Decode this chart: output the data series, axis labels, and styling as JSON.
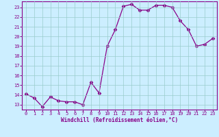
{
  "xlabel": "Windchill (Refroidissement éolien,°C)",
  "x_values": [
    0,
    1,
    2,
    3,
    4,
    5,
    6,
    7,
    8,
    9,
    10,
    11,
    12,
    13,
    14,
    15,
    16,
    17,
    18,
    19,
    20,
    21,
    22,
    23
  ],
  "y_values": [
    14.1,
    13.7,
    12.8,
    13.8,
    13.4,
    13.3,
    13.3,
    13.0,
    15.3,
    14.2,
    19.0,
    20.7,
    23.1,
    23.3,
    22.7,
    22.7,
    23.2,
    23.2,
    23.0,
    21.6,
    20.7,
    19.0,
    19.2,
    19.8
  ],
  "line_color": "#880088",
  "marker_color": "#880088",
  "bg_color": "#cceeff",
  "grid_color": "#99cccc",
  "axis_color": "#880088",
  "tick_color": "#880088",
  "ylim": [
    12.5,
    23.6
  ],
  "xlim": [
    -0.5,
    23.5
  ],
  "yticks": [
    13,
    14,
    15,
    16,
    17,
    18,
    19,
    20,
    21,
    22,
    23
  ],
  "xticks": [
    0,
    1,
    2,
    3,
    4,
    5,
    6,
    7,
    8,
    9,
    10,
    11,
    12,
    13,
    14,
    15,
    16,
    17,
    18,
    19,
    20,
    21,
    22,
    23
  ],
  "xlabel_fontsize": 5.5,
  "tick_fontsize": 5.0,
  "marker_size": 2.5,
  "line_width": 0.9
}
